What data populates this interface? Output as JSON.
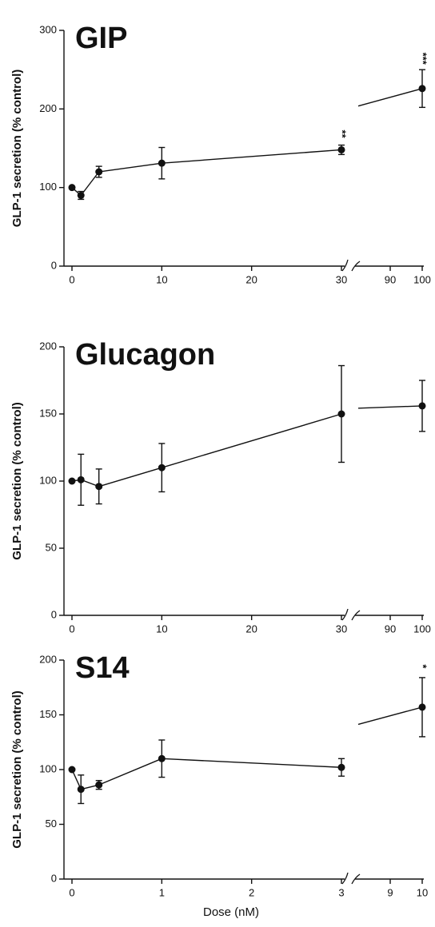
{
  "chart_data": [
    {
      "type": "line",
      "title": "GIP",
      "y_label": "GLP-1 secretion (% control)",
      "x": [
        0,
        1,
        3,
        10,
        30,
        100
      ],
      "values": [
        100,
        90,
        120,
        131,
        148,
        226
      ],
      "errors": [
        null,
        5,
        7,
        20,
        6,
        24
      ],
      "color": "#111111",
      "xlim": [
        0,
        30
      ],
      "xticks": [
        0,
        10,
        20,
        30
      ],
      "x2lim": [
        80,
        100
      ],
      "x2ticks": [
        90,
        100
      ],
      "ylim": [
        0,
        300
      ],
      "yticks": [
        0,
        100,
        200,
        300
      ],
      "annotations": [
        {
          "x": 30,
          "text": "**"
        },
        {
          "x": 100,
          "text": "***"
        }
      ]
    },
    {
      "type": "line",
      "title": "Glucagon",
      "y_label": "GLP-1 secretion (% control)",
      "x": [
        0,
        1,
        3,
        10,
        30,
        100
      ],
      "values": [
        100,
        101,
        96,
        110,
        150,
        156
      ],
      "errors": [
        null,
        19,
        13,
        18,
        36,
        19
      ],
      "color": "#111111",
      "xlim": [
        0,
        30
      ],
      "xticks": [
        0,
        10,
        20,
        30
      ],
      "x2lim": [
        80,
        100
      ],
      "x2ticks": [
        90,
        100
      ],
      "ylim": [
        0,
        200
      ],
      "yticks": [
        0,
        50,
        100,
        150,
        200
      ],
      "annotations": []
    },
    {
      "type": "line",
      "title": "S14",
      "y_label": "GLP-1 secretion (% control)",
      "x_label": "Dose (nM)",
      "x": [
        0,
        0.1,
        0.3,
        1,
        3,
        10
      ],
      "values": [
        100,
        82,
        86,
        110,
        102,
        157
      ],
      "errors": [
        null,
        13,
        4,
        17,
        8,
        27
      ],
      "color": "#111111",
      "xlim": [
        0,
        3
      ],
      "xticks": [
        0,
        1,
        2,
        3
      ],
      "x2lim": [
        8,
        10
      ],
      "x2ticks": [
        9,
        10
      ],
      "ylim": [
        0,
        200
      ],
      "yticks": [
        0,
        50,
        100,
        150,
        200
      ],
      "annotations": [
        {
          "x": 10,
          "text": "*"
        }
      ]
    }
  ]
}
